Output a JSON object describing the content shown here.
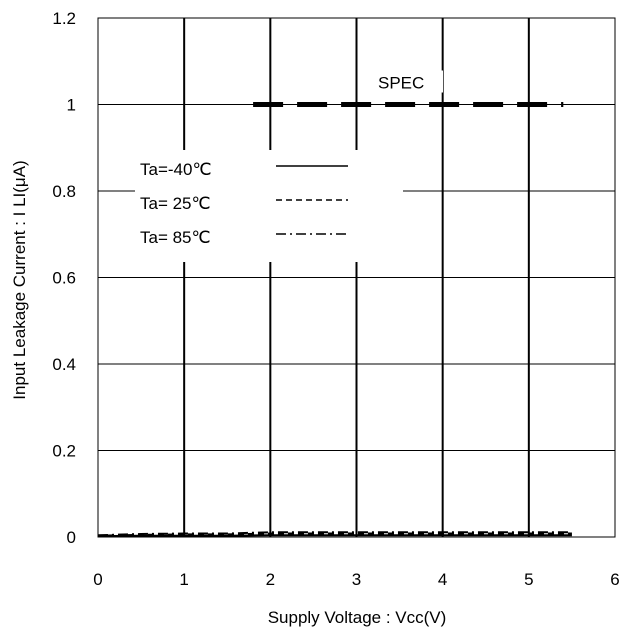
{
  "chart_data": {
    "type": "line",
    "title": "",
    "xlabel": "Supply Voltage : Vcc(V)",
    "ylabel": "Input Leakage Current : I LI(μA)",
    "xlim": [
      0,
      6
    ],
    "ylim": [
      0,
      1.2
    ],
    "x_ticks": [
      "0",
      "1",
      "2",
      "3",
      "4",
      "5",
      "6"
    ],
    "y_ticks": [
      "0",
      "0.2",
      "0.4",
      "0.6",
      "0.8",
      "1",
      "1.2"
    ],
    "grid": true,
    "spec": {
      "label": "SPEC",
      "y": 1.0,
      "x_range": [
        1.8,
        5.4
      ]
    },
    "series": [
      {
        "name": "Ta=-40℃",
        "style": "solid",
        "x": [
          0,
          0.5,
          1,
          1.5,
          2,
          2.5,
          3,
          3.5,
          4,
          4.5,
          5,
          5.5
        ],
        "y": [
          0.002,
          0.003,
          0.003,
          0.003,
          0.004,
          0.004,
          0.004,
          0.004,
          0.004,
          0.004,
          0.004,
          0.004
        ]
      },
      {
        "name": "Ta= 25℃",
        "style": "dashed",
        "x": [
          0,
          0.5,
          1,
          1.5,
          2,
          2.5,
          3,
          3.5,
          4,
          4.5,
          5,
          5.5
        ],
        "y": [
          0.003,
          0.005,
          0.006,
          0.006,
          0.008,
          0.008,
          0.008,
          0.008,
          0.008,
          0.008,
          0.008,
          0.008
        ]
      },
      {
        "name": "Ta= 85℃",
        "style": "dashdot",
        "x": [
          0,
          0.5,
          1,
          1.5,
          2,
          2.5,
          3,
          3.5,
          4,
          4.5,
          5,
          5.5
        ],
        "y": [
          0.004,
          0.007,
          0.008,
          0.008,
          0.011,
          0.011,
          0.011,
          0.011,
          0.011,
          0.011,
          0.011,
          0.011
        ]
      }
    ],
    "legend_placement": "upper-left inside plot"
  },
  "colors": {
    "line": "#000000",
    "grid": "#000000",
    "background": "#ffffff"
  }
}
